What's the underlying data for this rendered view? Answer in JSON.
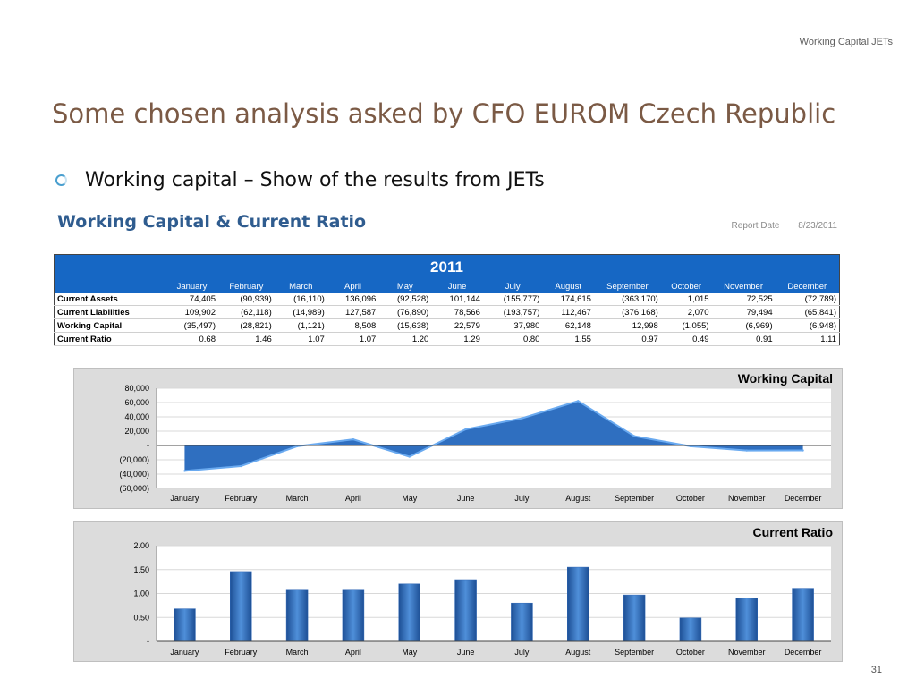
{
  "header": {
    "right_text": "Working Capital  JETs"
  },
  "slide": {
    "title": "Some chosen  analysis asked by CFO EUROM Czech Republic",
    "bullet": "Working capital – Show of the results from JETs",
    "page_number": "31"
  },
  "report": {
    "title": "Working Capital & Current Ratio",
    "date_label": "Report Date",
    "date_value": "8/23/2011"
  },
  "table": {
    "year": "2011",
    "months": [
      "January",
      "February",
      "March",
      "April",
      "May",
      "June",
      "July",
      "August",
      "September",
      "October",
      "November",
      "December"
    ],
    "rows": [
      {
        "label": "Current Assets",
        "values": [
          "74,405",
          "(90,939)",
          "(16,110)",
          "136,096",
          "(92,528)",
          "101,144",
          "(155,777)",
          "174,615",
          "(363,170)",
          "1,015",
          "72,525",
          "(72,789)"
        ]
      },
      {
        "label": "Current Liabilities",
        "values": [
          "109,902",
          "(62,118)",
          "(14,989)",
          "127,587",
          "(76,890)",
          "78,566",
          "(193,757)",
          "112,467",
          "(376,168)",
          "2,070",
          "79,494",
          "(65,841)"
        ]
      },
      {
        "label": "Working Capital",
        "values": [
          "(35,497)",
          "(28,821)",
          "(1,121)",
          "8,508",
          "(15,638)",
          "22,579",
          "37,980",
          "62,148",
          "12,998",
          "(1,055)",
          "(6,969)",
          "(6,948)"
        ]
      },
      {
        "label": "Current Ratio",
        "values": [
          "0.68",
          "1.46",
          "1.07",
          "1.07",
          "1.20",
          "1.29",
          "0.80",
          "1.55",
          "0.97",
          "0.49",
          "0.91",
          "1.11"
        ]
      }
    ]
  },
  "chart_data": [
    {
      "type": "area",
      "title": "Working Capital",
      "categories": [
        "January",
        "February",
        "March",
        "April",
        "May",
        "June",
        "July",
        "August",
        "September",
        "October",
        "November",
        "December"
      ],
      "values": [
        -35497,
        -28821,
        -1121,
        8508,
        -15638,
        22579,
        37980,
        62148,
        12998,
        -1055,
        -6969,
        -6948
      ],
      "ylim": [
        -60000,
        80000
      ],
      "yticks": [
        80000,
        60000,
        40000,
        20000,
        0,
        -20000,
        -40000,
        -60000
      ],
      "ytick_labels": [
        "80,000",
        "60,000",
        "40,000",
        "20,000",
        "-",
        "(20,000)",
        "(40,000)",
        "(60,000)"
      ],
      "colors": {
        "fill": "#2f6fc0",
        "line": "#6aaaf0"
      }
    },
    {
      "type": "bar",
      "title": "Current Ratio",
      "categories": [
        "January",
        "February",
        "March",
        "April",
        "May",
        "June",
        "July",
        "August",
        "September",
        "October",
        "November",
        "December"
      ],
      "values": [
        0.68,
        1.46,
        1.07,
        1.07,
        1.2,
        1.29,
        0.8,
        1.55,
        0.97,
        0.49,
        0.91,
        1.11
      ],
      "ylim": [
        0,
        2
      ],
      "yticks": [
        2,
        1.5,
        1,
        0.5,
        0
      ],
      "ytick_labels": [
        "2.00",
        "1.50",
        "1.00",
        "0.50",
        "-"
      ],
      "colors": {
        "bar": "#2e66b5"
      }
    }
  ]
}
